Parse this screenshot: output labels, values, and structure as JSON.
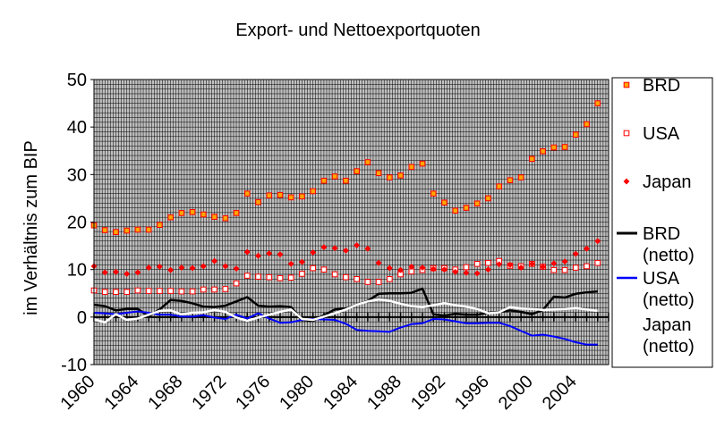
{
  "chart_data": {
    "type": "line",
    "title": "Export- und Nettoexportquoten",
    "xlabel": "",
    "ylabel": "im Verhältnis zum BIP",
    "xlim": [
      1960,
      2007
    ],
    "ylim": [
      -10,
      50
    ],
    "yticks": [
      -10,
      0,
      10,
      20,
      30,
      40,
      50
    ],
    "xticks": [
      1960,
      1964,
      1968,
      1972,
      1976,
      1980,
      1984,
      1988,
      1992,
      1996,
      2000,
      2004
    ],
    "grid": true,
    "grid_color": "#000000",
    "plot_background": "#c0c0c0",
    "legend_position": "right",
    "legend_entries": [
      {
        "label_lines": [
          "BRD"
        ],
        "series": "BRD"
      },
      {
        "label_lines": [
          "USA"
        ],
        "series": "USA"
      },
      {
        "label_lines": [
          "Japan"
        ],
        "series": "Japan"
      },
      {
        "label_lines": [
          "BRD",
          "(netto)"
        ],
        "series": "BRD (netto)"
      },
      {
        "label_lines": [
          "USA",
          "(netto)"
        ],
        "series": "USA (netto)"
      },
      {
        "label_lines": [
          "Japan",
          "(netto)"
        ],
        "series": "Japan (netto)"
      }
    ],
    "x": [
      1960,
      1961,
      1962,
      1963,
      1964,
      1965,
      1966,
      1967,
      1968,
      1969,
      1970,
      1971,
      1972,
      1973,
      1974,
      1975,
      1976,
      1977,
      1978,
      1979,
      1980,
      1981,
      1982,
      1983,
      1984,
      1985,
      1986,
      1987,
      1988,
      1989,
      1990,
      1991,
      1992,
      1993,
      1994,
      1995,
      1996,
      1997,
      1998,
      1999,
      2000,
      2001,
      2002,
      2003,
      2004,
      2005,
      2006
    ],
    "series": [
      {
        "name": "BRD",
        "kind": "marker",
        "marker": "square-filled",
        "color": "#ff0000",
        "fill": "#ffa500",
        "values": [
          19.3,
          18.3,
          17.9,
          18.2,
          18.4,
          18.4,
          19.4,
          21.0,
          21.9,
          22.1,
          21.6,
          21.1,
          20.8,
          21.9,
          26.0,
          24.2,
          25.6,
          25.7,
          25.2,
          25.4,
          26.5,
          28.7,
          29.6,
          28.7,
          30.7,
          32.6,
          30.3,
          29.4,
          29.8,
          31.6,
          32.3,
          26.0,
          24.1,
          22.4,
          23.0,
          23.9,
          25.0,
          27.5,
          28.8,
          29.4,
          33.3,
          34.9,
          35.7,
          35.8,
          38.4,
          40.6,
          45.0
        ]
      },
      {
        "name": "USA",
        "kind": "marker",
        "marker": "square-open",
        "color": "#ff0000",
        "fill": "#ffffff",
        "values": [
          5.6,
          5.3,
          5.3,
          5.3,
          5.6,
          5.5,
          5.5,
          5.5,
          5.4,
          5.4,
          5.8,
          5.8,
          5.9,
          7.1,
          8.7,
          8.5,
          8.4,
          8.2,
          8.3,
          9.1,
          10.3,
          10.0,
          9.0,
          8.4,
          8.0,
          7.4,
          7.4,
          8.0,
          9.0,
          9.6,
          9.9,
          10.3,
          10.3,
          10.0,
          10.5,
          11.2,
          11.4,
          11.8,
          10.8,
          10.7,
          11.2,
          10.6,
          9.9,
          9.9,
          10.4,
          10.7,
          11.4
        ]
      },
      {
        "name": "Japan",
        "kind": "marker",
        "marker": "diamond",
        "color": "#ff0000",
        "fill": "#ff0000",
        "values": [
          10.7,
          9.4,
          9.5,
          9.1,
          9.4,
          10.4,
          10.6,
          9.9,
          10.4,
          10.3,
          10.7,
          11.8,
          10.7,
          10.2,
          13.7,
          12.9,
          13.4,
          13.2,
          11.2,
          11.6,
          13.6,
          14.7,
          14.5,
          14.0,
          15.1,
          14.4,
          11.4,
          10.3,
          9.9,
          10.6,
          10.4,
          10.1,
          10.0,
          9.5,
          9.3,
          9.2,
          10.0,
          11.1,
          11.0,
          10.4,
          11.2,
          10.6,
          11.3,
          11.7,
          13.3,
          14.4,
          16.0
        ]
      },
      {
        "name": "BRD (netto)",
        "kind": "line",
        "color": "#000000",
        "width": 2.5,
        "values": [
          2.6,
          2.3,
          1.4,
          1.7,
          1.7,
          0.2,
          1.6,
          3.6,
          3.4,
          2.9,
          2.2,
          2.1,
          2.4,
          3.3,
          4.2,
          2.4,
          2.2,
          2.3,
          2.1,
          -0.6,
          -0.8,
          0.4,
          1.6,
          1.8,
          2.6,
          3.4,
          4.9,
          5.0,
          5.0,
          5.1,
          6.0,
          0.6,
          0.3,
          0.7,
          0.5,
          0.5,
          0.9,
          1.1,
          1.4,
          1.1,
          0.6,
          1.5,
          4.3,
          4.1,
          4.9,
          5.2,
          5.4
        ]
      },
      {
        "name": "USA (netto)",
        "kind": "line",
        "color": "#0000ff",
        "width": 2,
        "values": [
          0.9,
          0.8,
          0.6,
          0.9,
          1.2,
          0.9,
          0.5,
          0.5,
          0.1,
          0.1,
          0.4,
          -0.1,
          -0.4,
          0.5,
          -0.3,
          0.8,
          -0.3,
          -1.2,
          -1.1,
          -0.6,
          -0.4,
          -0.5,
          -0.6,
          -1.4,
          -2.7,
          -2.9,
          -3.0,
          -3.1,
          -2.2,
          -1.5,
          -1.3,
          -0.4,
          -0.5,
          -0.9,
          -1.3,
          -1.3,
          -1.2,
          -1.2,
          -1.9,
          -2.9,
          -3.9,
          -3.7,
          -4.1,
          -4.6,
          -5.3,
          -5.8,
          -5.8
        ]
      },
      {
        "name": "Japan (netto)",
        "kind": "line",
        "color": "#ffffff",
        "width": 2.5,
        "values": [
          -0.5,
          -1.1,
          0.6,
          -0.6,
          -0.3,
          0.5,
          1.3,
          1.4,
          0.6,
          0.9,
          1.0,
          1.5,
          1.1,
          -0.1,
          -0.8,
          -0.1,
          0.5,
          1.1,
          1.6,
          -0.4,
          -0.6,
          0.1,
          0.8,
          1.6,
          2.6,
          3.3,
          3.7,
          3.4,
          2.8,
          2.3,
          2.1,
          2.5,
          2.9,
          2.5,
          2.2,
          1.7,
          0.8,
          1.0,
          2.1,
          1.8,
          1.7,
          1.5,
          1.6,
          1.7,
          1.9,
          1.6,
          1.3
        ]
      }
    ]
  }
}
